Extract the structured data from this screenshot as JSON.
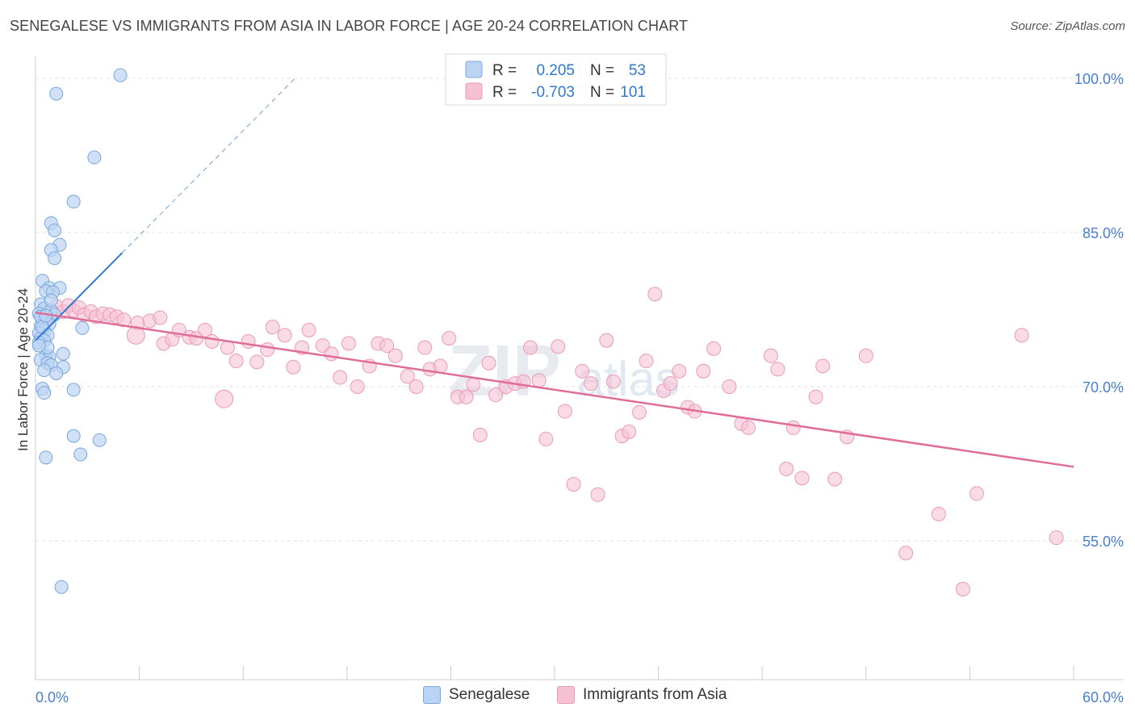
{
  "header": {
    "title": "SENEGALESE VS IMMIGRANTS FROM ASIA IN LABOR FORCE | AGE 20-24 CORRELATION CHART",
    "source": "Source: ZipAtlas.com"
  },
  "watermark": {
    "zip": "ZIP",
    "atlas": "atlas"
  },
  "colors": {
    "blue_fill": "#bcd4f3",
    "blue_stroke": "#7aa6dc",
    "blue_line": "#2f78d0",
    "pink_fill": "#f6c1d3",
    "pink_stroke": "#eb9ab6",
    "pink_line": "#e06c98",
    "axis_text_blue": "#4a7fcc"
  },
  "stats_legend": [
    {
      "r_label": "R =",
      "r_value": "0.205",
      "n_label": "N =",
      "n_value": "53"
    },
    {
      "r_label": "R =",
      "r_value": "-0.703",
      "n_label": "N =",
      "n_value": "101"
    }
  ],
  "chart_data": {
    "type": "scatter",
    "title": "SENEGALESE VS IMMIGRANTS FROM ASIA IN LABOR FORCE | AGE 20-24 CORRELATION CHART",
    "xlabel": "",
    "ylabel": "In Labor Force | Age 20-24",
    "xlim": [
      0,
      60
    ],
    "ylim": [
      40,
      102
    ],
    "x_tick_labels": [
      "0.0%",
      "60.0%"
    ],
    "y_ticks": [
      55,
      70,
      85,
      100
    ],
    "y_tick_labels": [
      "55.0%",
      "70.0%",
      "85.0%",
      "100.0%"
    ],
    "grid": true,
    "legend": "bottom",
    "series": [
      {
        "name": "Senegalese",
        "points": [
          [
            4.9,
            100.3
          ],
          [
            1.2,
            98.5
          ],
          [
            3.4,
            92.3
          ],
          [
            2.2,
            88.0
          ],
          [
            0.9,
            85.9
          ],
          [
            1.1,
            85.2
          ],
          [
            1.4,
            83.8
          ],
          [
            0.9,
            83.3
          ],
          [
            1.1,
            82.5
          ],
          [
            0.4,
            80.3
          ],
          [
            0.8,
            79.6
          ],
          [
            1.4,
            79.6
          ],
          [
            0.6,
            79.3
          ],
          [
            1.0,
            79.2
          ],
          [
            0.3,
            78.0
          ],
          [
            0.5,
            77.6
          ],
          [
            0.9,
            77.4
          ],
          [
            0.2,
            77.1
          ],
          [
            1.1,
            77.0
          ],
          [
            0.4,
            76.6
          ],
          [
            0.6,
            76.4
          ],
          [
            0.8,
            76.1
          ],
          [
            0.3,
            75.9
          ],
          [
            2.7,
            75.7
          ],
          [
            0.5,
            75.4
          ],
          [
            0.2,
            75.2
          ],
          [
            0.7,
            75.0
          ],
          [
            0.3,
            74.7
          ],
          [
            0.5,
            74.5
          ],
          [
            0.2,
            74.3
          ],
          [
            1.6,
            73.2
          ],
          [
            0.6,
            73.0
          ],
          [
            0.8,
            72.9
          ],
          [
            0.3,
            72.6
          ],
          [
            0.7,
            72.3
          ],
          [
            0.9,
            72.1
          ],
          [
            1.6,
            71.9
          ],
          [
            0.5,
            71.6
          ],
          [
            1.2,
            71.3
          ],
          [
            0.4,
            69.8
          ],
          [
            2.2,
            69.7
          ],
          [
            0.5,
            69.4
          ],
          [
            2.2,
            65.2
          ],
          [
            3.7,
            64.8
          ],
          [
            2.6,
            63.4
          ],
          [
            0.6,
            63.1
          ],
          [
            1.5,
            50.5
          ],
          [
            0.3,
            76.8
          ],
          [
            0.9,
            78.4
          ],
          [
            0.4,
            75.8
          ],
          [
            0.7,
            73.8
          ],
          [
            0.2,
            74.0
          ],
          [
            0.6,
            76.9
          ]
        ]
      },
      {
        "name": "Immigrants from Asia",
        "points": [
          [
            0.5,
            77.3
          ],
          [
            0.8,
            76.8
          ],
          [
            1.2,
            77.8
          ],
          [
            1.6,
            77.3
          ],
          [
            1.9,
            77.9
          ],
          [
            2.2,
            77.4
          ],
          [
            2.5,
            77.7
          ],
          [
            2.8,
            77.0
          ],
          [
            3.2,
            77.3
          ],
          [
            3.5,
            76.8
          ],
          [
            3.9,
            77.1
          ],
          [
            4.3,
            77.0
          ],
          [
            4.7,
            76.8
          ],
          [
            5.1,
            76.5
          ],
          [
            5.9,
            76.2
          ],
          [
            6.6,
            76.4
          ],
          [
            7.2,
            76.7
          ],
          [
            5.8,
            75.0
          ],
          [
            7.4,
            74.2
          ],
          [
            7.9,
            74.6
          ],
          [
            8.3,
            75.5
          ],
          [
            8.9,
            74.8
          ],
          [
            9.3,
            74.7
          ],
          [
            9.8,
            75.5
          ],
          [
            10.2,
            74.4
          ],
          [
            11.1,
            73.8
          ],
          [
            11.6,
            72.5
          ],
          [
            12.3,
            74.4
          ],
          [
            12.8,
            72.4
          ],
          [
            13.4,
            73.6
          ],
          [
            13.7,
            75.8
          ],
          [
            14.4,
            75.0
          ],
          [
            14.9,
            71.9
          ],
          [
            15.4,
            73.8
          ],
          [
            15.8,
            75.5
          ],
          [
            16.6,
            74.0
          ],
          [
            17.1,
            73.2
          ],
          [
            17.6,
            70.9
          ],
          [
            18.1,
            74.2
          ],
          [
            18.6,
            70.0
          ],
          [
            19.3,
            72.0
          ],
          [
            19.8,
            74.2
          ],
          [
            20.3,
            74.0
          ],
          [
            20.8,
            73.0
          ],
          [
            21.5,
            71.0
          ],
          [
            22.0,
            70.0
          ],
          [
            22.5,
            73.8
          ],
          [
            22.8,
            71.7
          ],
          [
            23.4,
            72.0
          ],
          [
            23.9,
            74.7
          ],
          [
            24.4,
            69.0
          ],
          [
            24.9,
            69.0
          ],
          [
            25.3,
            70.2
          ],
          [
            25.7,
            65.3
          ],
          [
            26.2,
            72.3
          ],
          [
            26.6,
            69.2
          ],
          [
            27.2,
            70.0
          ],
          [
            27.7,
            70.3
          ],
          [
            28.2,
            70.5
          ],
          [
            28.6,
            73.8
          ],
          [
            29.1,
            70.6
          ],
          [
            29.5,
            64.9
          ],
          [
            30.2,
            73.9
          ],
          [
            30.6,
            67.6
          ],
          [
            31.1,
            60.5
          ],
          [
            31.6,
            71.5
          ],
          [
            32.1,
            70.3
          ],
          [
            32.5,
            59.5
          ],
          [
            33.0,
            74.5
          ],
          [
            33.4,
            70.5
          ],
          [
            33.9,
            65.2
          ],
          [
            34.3,
            65.6
          ],
          [
            34.9,
            67.5
          ],
          [
            35.3,
            72.5
          ],
          [
            35.8,
            79.0
          ],
          [
            36.3,
            69.6
          ],
          [
            36.7,
            70.3
          ],
          [
            37.2,
            71.5
          ],
          [
            37.7,
            68.0
          ],
          [
            38.1,
            67.6
          ],
          [
            38.6,
            71.5
          ],
          [
            39.2,
            73.7
          ],
          [
            40.1,
            70.0
          ],
          [
            40.8,
            66.4
          ],
          [
            41.2,
            66.0
          ],
          [
            42.5,
            73.0
          ],
          [
            42.9,
            71.7
          ],
          [
            43.4,
            62.0
          ],
          [
            43.8,
            66.0
          ],
          [
            44.3,
            61.1
          ],
          [
            45.1,
            69.0
          ],
          [
            45.5,
            72.0
          ],
          [
            46.2,
            61.0
          ],
          [
            46.9,
            65.1
          ],
          [
            48.0,
            73.0
          ],
          [
            50.3,
            53.8
          ],
          [
            52.2,
            57.6
          ],
          [
            53.6,
            50.3
          ],
          [
            54.4,
            59.6
          ],
          [
            57.0,
            75.0
          ],
          [
            59.0,
            55.3
          ]
        ]
      }
    ],
    "trend_lines": [
      {
        "series": "Senegalese",
        "solid": [
          [
            0,
            74.5
          ],
          [
            5.0,
            83.0
          ]
        ],
        "dashed": [
          [
            5.0,
            83.0
          ],
          [
            15.0,
            100.0
          ]
        ]
      },
      {
        "series": "Immigrants from Asia",
        "solid": [
          [
            0,
            77.2
          ],
          [
            60.0,
            62.2
          ]
        ]
      }
    ]
  },
  "legend_bottom": [
    {
      "label": "Senegalese"
    },
    {
      "label": "Immigrants from Asia"
    }
  ]
}
